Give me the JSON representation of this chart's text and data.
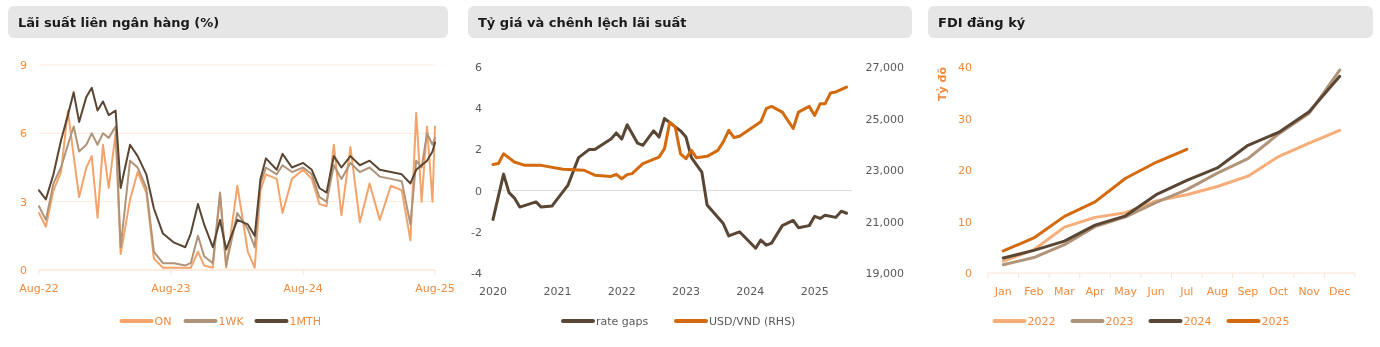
{
  "chart_data": [
    {
      "type": "line",
      "title": "Lãi suất liên ngân hàng (%)",
      "x": [
        "2022-08-01",
        "2022-08-20",
        "2022-09-10",
        "2022-10-01",
        "2022-10-20",
        "2022-11-05",
        "2022-11-20",
        "2022-12-10",
        "2022-12-25",
        "2023-01-10",
        "2023-01-25",
        "2023-02-10",
        "2023-03-01",
        "2023-03-15",
        "2023-04-10",
        "2023-05-01",
        "2023-05-25",
        "2023-06-15",
        "2023-07-10",
        "2023-08-10",
        "2023-09-10",
        "2023-09-25",
        "2023-10-15",
        "2023-11-01",
        "2023-11-25",
        "2023-12-15",
        "2024-01-01",
        "2024-02-01",
        "2024-03-01",
        "2024-03-20",
        "2024-04-05",
        "2024-04-20",
        "2024-05-20",
        "2024-06-05",
        "2024-07-01",
        "2024-08-01",
        "2024-08-25",
        "2024-09-15",
        "2024-10-05",
        "2024-10-25",
        "2024-11-15",
        "2024-12-10",
        "2025-01-05",
        "2025-02-01",
        "2025-03-01",
        "2025-04-01",
        "2025-05-01",
        "2025-05-25",
        "2025-06-10",
        "2025-06-25",
        "2025-07-10",
        "2025-07-25",
        "2025-08-01"
      ],
      "series": [
        {
          "name": "ON",
          "color": "#f4a46a",
          "values": [
            2.5,
            1.9,
            3.5,
            4.3,
            7.0,
            5.0,
            3.2,
            4.5,
            5.0,
            2.3,
            5.5,
            3.6,
            6.0,
            0.7,
            3.1,
            4.3,
            3.4,
            0.5,
            0.1,
            0.1,
            0.1,
            0.1,
            0.8,
            0.2,
            0.1,
            3.3,
            0.1,
            3.7,
            0.8,
            0.1,
            3.5,
            4.2,
            4.0,
            2.5,
            4.0,
            4.4,
            4.0,
            2.9,
            2.8,
            5.5,
            2.4,
            5.4,
            2.1,
            3.8,
            2.2,
            3.7,
            3.5,
            1.3,
            6.9,
            3.0,
            6.3,
            3.0,
            6.3
          ]
        },
        {
          "name": "1WK",
          "color": "#b09479",
          "values": [
            2.8,
            2.2,
            3.8,
            4.5,
            5.5,
            6.3,
            5.2,
            5.5,
            6.0,
            5.5,
            6.0,
            5.8,
            6.3,
            1.0,
            4.8,
            4.5,
            3.6,
            0.8,
            0.3,
            0.3,
            0.2,
            0.3,
            1.5,
            0.6,
            0.3,
            3.4,
            0.2,
            2.5,
            1.8,
            1.0,
            3.8,
            4.5,
            4.2,
            4.6,
            4.3,
            4.5,
            4.2,
            3.2,
            3.0,
            4.6,
            4.0,
            4.7,
            4.3,
            4.5,
            4.1,
            4.0,
            3.9,
            2.0,
            4.8,
            4.5,
            6.0,
            5.5,
            5.8
          ]
        },
        {
          "name": "1MTH",
          "color": "#5a4634",
          "values": [
            3.5,
            3.1,
            4.2,
            5.7,
            6.8,
            7.8,
            6.5,
            7.6,
            8.0,
            7.0,
            7.4,
            6.8,
            7.0,
            3.6,
            5.5,
            5.0,
            4.2,
            2.7,
            1.6,
            1.2,
            1.0,
            1.6,
            2.9,
            2.0,
            1.0,
            2.2,
            0.9,
            2.2,
            2.0,
            1.5,
            4.0,
            4.9,
            4.4,
            5.1,
            4.5,
            4.7,
            4.4,
            3.6,
            3.4,
            5.0,
            4.5,
            5.0,
            4.6,
            4.8,
            4.4,
            4.3,
            4.2,
            3.8,
            4.4,
            4.6,
            4.8,
            5.2,
            5.6
          ]
        }
      ],
      "xlim": [
        "2022-08-01",
        "2025-08-01"
      ],
      "xticks": [
        {
          "value": "2022-08-01",
          "label": "Aug-22"
        },
        {
          "value": "2023-08-01",
          "label": "Aug-23"
        },
        {
          "value": "2024-08-01",
          "label": "Aug-24"
        },
        {
          "value": "2025-08-01",
          "label": "Aug-25"
        }
      ],
      "ylim": [
        0,
        9
      ],
      "yticks": [
        0,
        3,
        6,
        9
      ],
      "grid": "y",
      "legend": "bottom"
    },
    {
      "type": "line",
      "title": "Tỷ giá và chênh lệch lãi suất",
      "series": [
        {
          "name": "rate gaps",
          "color": "#5a4634",
          "x": [
            "2020-01",
            "2020-03",
            "2020-04",
            "2020-05",
            "2020-06",
            "2020-09",
            "2020-10",
            "2020-12",
            "2021-01",
            "2021-03",
            "2021-05",
            "2021-07",
            "2021-08",
            "2021-11",
            "2021-12",
            "2022-01",
            "2022-02",
            "2022-04",
            "2022-05",
            "2022-07",
            "2022-08",
            "2022-09",
            "2022-10",
            "2022-12",
            "2023-01",
            "2023-02",
            "2023-04",
            "2023-05",
            "2023-08",
            "2023-09",
            "2023-11",
            "2024-02",
            "2024-03",
            "2024-04",
            "2024-05",
            "2024-07",
            "2024-09",
            "2024-10",
            "2024-12",
            "2025-01",
            "2025-02",
            "2025-03",
            "2025-05",
            "2025-06",
            "2025-07"
          ],
          "values": [
            -1.4,
            0.8,
            -0.1,
            -0.35,
            -0.8,
            -0.55,
            -0.8,
            -0.75,
            -0.4,
            0.25,
            1.6,
            2.0,
            2.0,
            2.5,
            2.8,
            2.5,
            3.2,
            2.3,
            2.2,
            2.9,
            2.6,
            3.5,
            3.3,
            2.9,
            2.6,
            1.6,
            0.9,
            -0.7,
            -1.6,
            -2.2,
            -2.0,
            -2.8,
            -2.4,
            -2.65,
            -2.55,
            -1.7,
            -1.45,
            -1.8,
            -1.7,
            -1.25,
            -1.35,
            -1.2,
            -1.3,
            -1.0,
            -1.1
          ]
        },
        {
          "name": "USD/VND (RHS)",
          "color": "#d46a0e",
          "axis": "y2",
          "x": [
            "2020-01",
            "2020-02",
            "2020-03",
            "2020-05",
            "2020-07",
            "2020-10",
            "2021-02",
            "2021-06",
            "2021-08",
            "2021-11",
            "2021-12",
            "2022-01",
            "2022-02",
            "2022-03",
            "2022-05",
            "2022-08",
            "2022-09",
            "2022-10",
            "2022-11",
            "2022-12",
            "2023-01",
            "2023-02",
            "2023-03",
            "2023-05",
            "2023-07",
            "2023-08",
            "2023-09",
            "2023-10",
            "2023-11",
            "2024-02",
            "2024-03",
            "2024-04",
            "2024-05",
            "2024-07",
            "2024-09",
            "2024-10",
            "2024-12",
            "2025-01",
            "2025-02",
            "2025-03",
            "2025-04",
            "2025-05",
            "2025-07"
          ],
          "values": [
            23210,
            23250,
            23630,
            23310,
            23180,
            23180,
            23030,
            22990,
            22800,
            22750,
            22830,
            22660,
            22820,
            22860,
            23250,
            23500,
            23830,
            24860,
            24670,
            23630,
            23440,
            23760,
            23480,
            23530,
            23760,
            24090,
            24540,
            24260,
            24310,
            24740,
            24870,
            25380,
            25470,
            25250,
            24610,
            25250,
            25470,
            25120,
            25570,
            25570,
            25990,
            26030,
            26220
          ]
        }
      ],
      "xlim": [
        "2020-01",
        "2025-08"
      ],
      "xticks": [
        {
          "value": "2020-01",
          "label": "2020"
        },
        {
          "value": "2021-01",
          "label": "2021"
        },
        {
          "value": "2022-01",
          "label": "2022"
        },
        {
          "value": "2023-01",
          "label": "2023"
        },
        {
          "value": "2024-01",
          "label": "2024"
        },
        {
          "value": "2025-01",
          "label": "2025"
        }
      ],
      "ylim": [
        -4,
        6
      ],
      "yticks": [
        -4,
        -2,
        0,
        2,
        4,
        6
      ],
      "y2lim": [
        19000,
        27000
      ],
      "y2ticks": [
        {
          "value": 19000,
          "label": "19,000"
        },
        {
          "value": 21000,
          "label": "21,000"
        },
        {
          "value": 23000,
          "label": "23,000"
        },
        {
          "value": 25000,
          "label": "25,000"
        },
        {
          "value": 27000,
          "label": "27,000"
        }
      ],
      "ref_lines": [
        {
          "axis": "y",
          "value": 0,
          "color": "#d9d9d9"
        }
      ],
      "legend": "bottom"
    },
    {
      "type": "line",
      "title": "FDI đăng ký",
      "ylabel": "Tỷ đô",
      "categories": [
        "Jan",
        "Feb",
        "Mar",
        "Apr",
        "May",
        "Jun",
        "Jul",
        "Aug",
        "Sep",
        "Oct",
        "Nov",
        "Dec"
      ],
      "series": [
        {
          "name": "2022",
          "color": "#f6ad77",
          "values": [
            2.3,
            4.5,
            8.9,
            10.8,
            11.7,
            14.0,
            15.2,
            16.8,
            18.8,
            22.6,
            25.2,
            27.7
          ]
        },
        {
          "name": "2023",
          "color": "#b09479",
          "values": [
            1.6,
            3.0,
            5.5,
            9.0,
            10.9,
            13.7,
            16.2,
            19.4,
            22.2,
            27.0,
            31.0,
            39.4
          ]
        },
        {
          "name": "2024",
          "color": "#5a4634",
          "values": [
            2.9,
            4.4,
            6.2,
            9.3,
            11.1,
            15.2,
            18.0,
            20.4,
            24.8,
            27.3,
            31.3,
            38.2
          ]
        },
        {
          "name": "2025",
          "color": "#d46a0e",
          "values": [
            4.3,
            6.8,
            11.0,
            13.8,
            18.4,
            21.5,
            24.0,
            null,
            null,
            null,
            null,
            null
          ]
        }
      ],
      "ylim": [
        0,
        40
      ],
      "yticks": [
        0,
        10,
        20,
        30,
        40
      ],
      "legend": "bottom"
    }
  ]
}
